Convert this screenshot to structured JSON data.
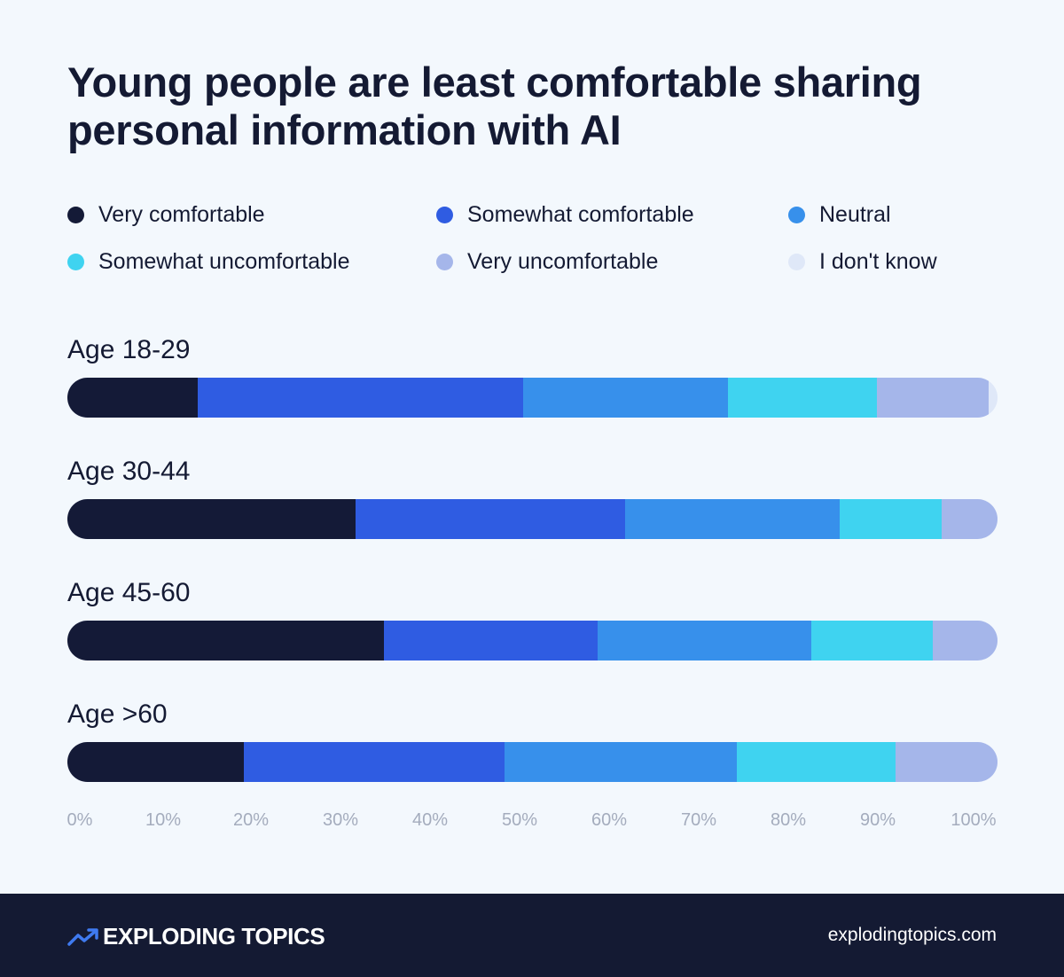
{
  "chart_data": {
    "type": "bar",
    "orientation": "horizontal",
    "stacked": true,
    "title": "Young people are least comfortable sharing personal information with AI",
    "xlim": [
      0,
      100
    ],
    "x_ticks": [
      "0%",
      "10%",
      "20%",
      "30%",
      "40%",
      "50%",
      "60%",
      "70%",
      "80%",
      "90%",
      "100%"
    ],
    "grid": false,
    "legend_position": "top",
    "categories": [
      "Age 18-29",
      "Age 30-44",
      "Age 45-60",
      "Age >60"
    ],
    "series": [
      {
        "name": "Very comfortable",
        "color": "#141a37",
        "values": [
          14,
          31,
          34,
          19
        ]
      },
      {
        "name": "Somewhat comfortable",
        "color": "#2f5ce2",
        "values": [
          35,
          29,
          23,
          28
        ]
      },
      {
        "name": "Neutral",
        "color": "#3790eb",
        "values": [
          22,
          23,
          23,
          25
        ]
      },
      {
        "name": "Somewhat uncomfortable",
        "color": "#3fd3f0",
        "values": [
          16,
          11,
          13,
          17
        ]
      },
      {
        "name": "Very uncomfortable",
        "color": "#a5b6ea",
        "values": [
          12,
          6,
          7,
          11
        ]
      },
      {
        "name": "I don't know",
        "color": "#dfe8f8",
        "values": [
          1,
          0,
          0,
          0
        ]
      }
    ]
  },
  "footer": {
    "brand": "EXPLODING TOPICS",
    "url": "explodingtopics.com",
    "logo_icon": "trend-arrow-icon"
  }
}
